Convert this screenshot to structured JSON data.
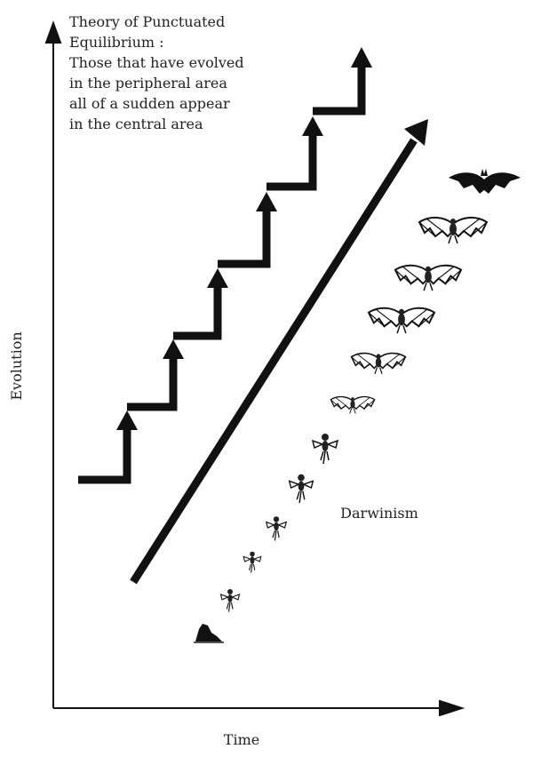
{
  "note": {
    "lines": [
      "Theory of Punctuated",
      "Equilibrium :",
      "Those that have evolved",
      "in the peripheral area",
      "all of a sudden appear",
      "in the central area"
    ]
  },
  "axes": {
    "y_label": "Evolution",
    "x_label": "Time"
  },
  "labels": {
    "gradual": "Darwinism"
  }
}
